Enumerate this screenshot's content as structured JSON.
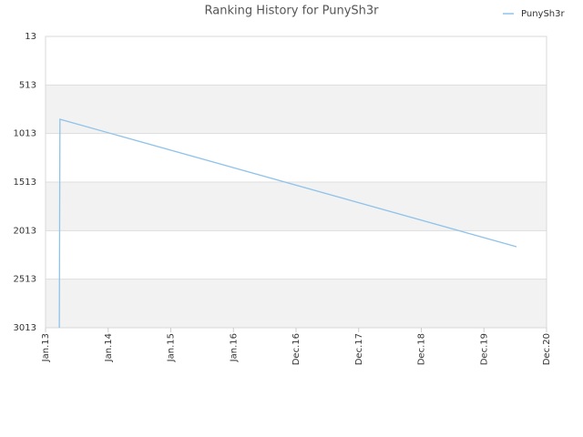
{
  "chart_data": {
    "type": "line",
    "title": "Ranking History for PunySh3r",
    "x": [
      0.22,
      0.23,
      7.52
    ],
    "series": [
      {
        "name": "PunySh3r",
        "color": "#8fc3ea",
        "values": [
          3013,
          866,
          2179
        ]
      }
    ],
    "xlim": [
      0,
      8
    ],
    "xticks": [
      {
        "value": 0,
        "label": "Jan.13"
      },
      {
        "value": 1,
        "label": "Jan.14"
      },
      {
        "value": 2,
        "label": "Jan.15"
      },
      {
        "value": 3,
        "label": "Jan.16"
      },
      {
        "value": 4,
        "label": "Dec.16"
      },
      {
        "value": 5,
        "label": "Dec.17"
      },
      {
        "value": 6,
        "label": "Dec.18"
      },
      {
        "value": 7,
        "label": "Dec.19"
      },
      {
        "value": 8,
        "label": "Dec.20"
      }
    ],
    "ylim": [
      3013,
      13
    ],
    "yticks": [
      13,
      513,
      1013,
      1513,
      2013,
      2513,
      3013
    ],
    "grid": true,
    "legend": "top-right"
  }
}
